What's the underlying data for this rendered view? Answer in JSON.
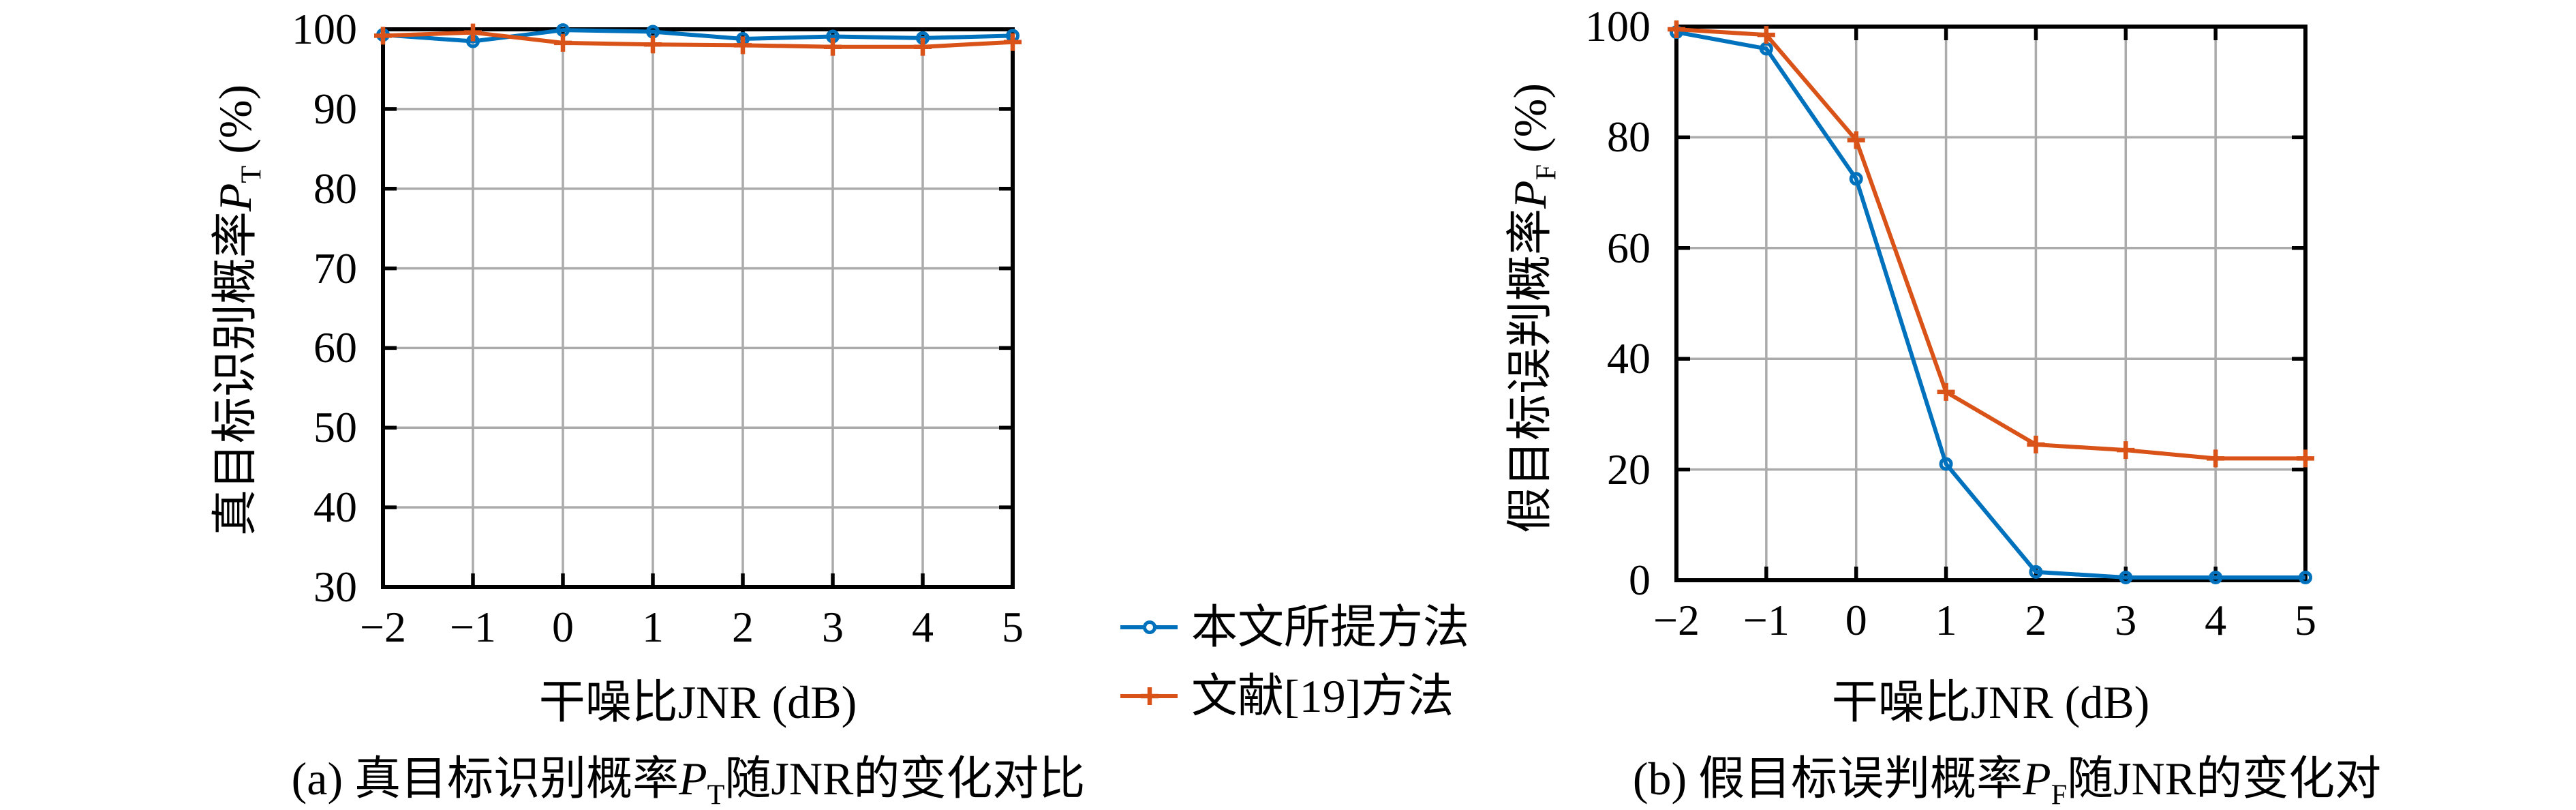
{
  "page": {
    "background": "#ffffff"
  },
  "colors": {
    "series_blue": "#0072BD",
    "series_orange": "#D95319",
    "grid": "#ababab",
    "frame": "#000000"
  },
  "legend": {
    "items": [
      {
        "label": "本文所提方法",
        "color": "#0072BD",
        "marker": "circle"
      },
      {
        "label": "文献[19]方法",
        "color": "#D95319",
        "marker": "plus"
      }
    ]
  },
  "chart_data": [
    {
      "type": "line",
      "panel": "a",
      "caption": {
        "prefix": "(a) 真目标识别概率",
        "var": "P",
        "sub": "T",
        "suffix": "随JNR的变化对比"
      },
      "ylabel": {
        "prefix": "真目标识别概率",
        "var": "P",
        "sub": "T",
        "suffix": " (%)"
      },
      "xlabel": "干噪比JNR (dB)",
      "xlim": [
        -2,
        5
      ],
      "ylim": [
        30,
        100
      ],
      "xticks": [
        -2,
        -1,
        0,
        1,
        2,
        3,
        4,
        5
      ],
      "xtick_labels": [
        "−2",
        "−1",
        "0",
        "1",
        "2",
        "3",
        "4",
        "5"
      ],
      "yticks": [
        30,
        40,
        50,
        60,
        70,
        80,
        90,
        100
      ],
      "ytick_labels": [
        "30",
        "40",
        "50",
        "60",
        "70",
        "80",
        "90",
        "100"
      ],
      "grid": true,
      "series": [
        {
          "name": "本文所提方法",
          "color": "#0072BD",
          "marker": "circle",
          "x": [
            -2,
            -1,
            0,
            1,
            2,
            3,
            4,
            5
          ],
          "y": [
            99.3,
            98.5,
            99.9,
            99.7,
            98.8,
            99.1,
            98.9,
            99.2
          ]
        },
        {
          "name": "文献[19]方法",
          "color": "#D95319",
          "marker": "plus",
          "x": [
            -2,
            -1,
            0,
            1,
            2,
            3,
            4,
            5
          ],
          "y": [
            99.2,
            99.6,
            98.3,
            98.1,
            98.0,
            97.8,
            97.8,
            98.4
          ]
        }
      ]
    },
    {
      "type": "line",
      "panel": "b",
      "caption": {
        "prefix": "(b) 假目标误判概率",
        "var": "P",
        "sub": "F",
        "suffix": "随JNR的变化对"
      },
      "ylabel": {
        "prefix": "假目标误判概率",
        "var": "P",
        "sub": "F",
        "suffix": " (%)"
      },
      "xlabel": "干噪比JNR (dB)",
      "xlim": [
        -2,
        5
      ],
      "ylim": [
        0,
        100
      ],
      "xticks": [
        -2,
        -1,
        0,
        1,
        2,
        3,
        4,
        5
      ],
      "xtick_labels": [
        "−2",
        "−1",
        "0",
        "1",
        "2",
        "3",
        "4",
        "5"
      ],
      "yticks": [
        0,
        20,
        40,
        60,
        80,
        100
      ],
      "ytick_labels": [
        "0",
        "20",
        "40",
        "60",
        "80",
        "100"
      ],
      "grid": true,
      "series": [
        {
          "name": "本文所提方法",
          "color": "#0072BD",
          "marker": "circle",
          "x": [
            -2,
            -1,
            0,
            1,
            2,
            3,
            4,
            5
          ],
          "y": [
            99.0,
            96.0,
            72.5,
            21.0,
            1.5,
            0.5,
            0.5,
            0.5
          ]
        },
        {
          "name": "文献[19]方法",
          "color": "#D95319",
          "marker": "plus",
          "x": [
            -2,
            -1,
            0,
            1,
            2,
            3,
            4,
            5
          ],
          "y": [
            99.5,
            98.5,
            79.5,
            34.0,
            24.5,
            23.5,
            22.0,
            22.0
          ]
        }
      ]
    }
  ]
}
